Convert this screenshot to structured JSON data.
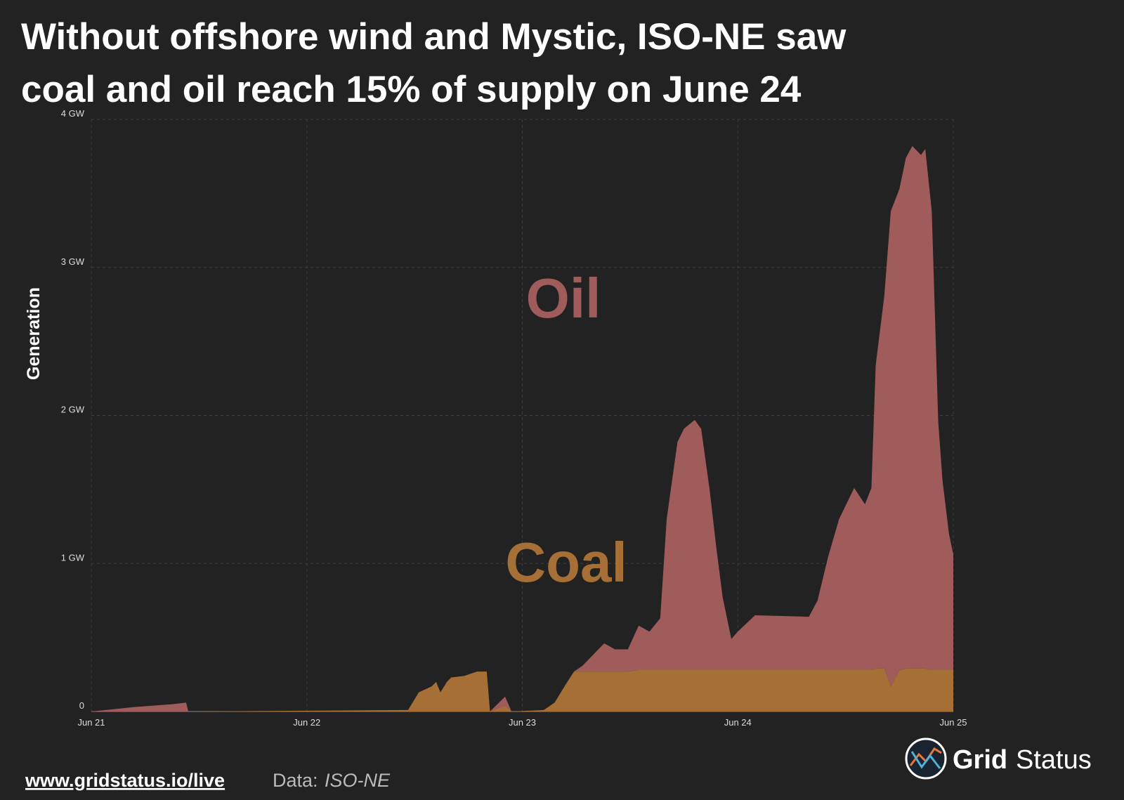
{
  "chart_data": {
    "type": "stacked-area",
    "title": [
      "Without offshore wind and Mystic, ISO-NE saw",
      "coal and oil reach 15% of supply on June 24"
    ],
    "y_label": "Generation",
    "x": [
      0,
      0.2,
      0.38,
      0.44,
      0.45,
      1.47,
      1.52,
      1.58,
      1.6,
      1.62,
      1.65,
      1.67,
      1.73,
      1.79,
      1.835,
      1.85,
      1.92,
      1.95,
      2.1,
      2.15,
      2.2,
      2.24,
      2.28,
      2.38,
      2.43,
      2.49,
      2.54,
      2.59,
      2.64,
      2.67,
      2.72,
      2.75,
      2.8,
      2.83,
      2.87,
      2.9,
      2.93,
      2.97,
      3.0,
      3.08,
      3.33,
      3.37,
      3.42,
      3.47,
      3.54,
      3.59,
      3.62,
      3.64,
      3.68,
      3.71,
      3.75,
      3.78,
      3.81,
      3.85,
      3.87,
      3.9,
      3.93,
      3.95,
      3.98,
      4.0
    ],
    "series": [
      {
        "name": "Coal",
        "color": "#a66f35",
        "values": [
          0,
          0,
          0,
          0,
          0,
          0.01,
          0.13,
          0.17,
          0.2,
          0.13,
          0.2,
          0.23,
          0.24,
          0.27,
          0.27,
          0,
          0.04,
          0,
          0.01,
          0.06,
          0.18,
          0.27,
          0.27,
          0.27,
          0.27,
          0.27,
          0.28,
          0.28,
          0.28,
          0.28,
          0.28,
          0.28,
          0.28,
          0.28,
          0.28,
          0.28,
          0.28,
          0.28,
          0.28,
          0.28,
          0.28,
          0.28,
          0.28,
          0.28,
          0.28,
          0.28,
          0.28,
          0.29,
          0.29,
          0.17,
          0.28,
          0.29,
          0.29,
          0.29,
          0.29,
          0.28,
          0.28,
          0.28,
          0.28,
          0.28
        ]
      },
      {
        "name": "Oil",
        "color": "#a05c5a",
        "values": [
          0,
          0.03,
          0.05,
          0.06,
          0,
          0,
          0,
          0,
          0,
          0,
          0,
          0,
          0,
          0,
          0,
          0,
          0.06,
          0,
          0,
          0,
          0,
          0,
          0.04,
          0.19,
          0.15,
          0.15,
          0.3,
          0.26,
          0.35,
          1.02,
          1.54,
          1.63,
          1.69,
          1.63,
          1.21,
          0.83,
          0.49,
          0.21,
          0.26,
          0.37,
          0.36,
          0.47,
          0.77,
          1.02,
          1.23,
          1.12,
          1.23,
          2.05,
          2.52,
          3.21,
          3.25,
          3.45,
          3.53,
          3.47,
          3.51,
          3.1,
          1.68,
          1.28,
          0.92,
          0.78
        ]
      }
    ],
    "xlim": [
      0,
      4
    ],
    "xticks": [
      {
        "value": 0,
        "label": "Jun 21"
      },
      {
        "value": 1,
        "label": "Jun 22"
      },
      {
        "value": 2,
        "label": "Jun 23"
      },
      {
        "value": 3,
        "label": "Jun 24"
      },
      {
        "value": 4,
        "label": "Jun 25"
      }
    ],
    "ylim": [
      0,
      4
    ],
    "yticks": [
      0,
      {
        "value": 1,
        "label": "1 GW"
      },
      {
        "value": 2,
        "label": "2 GW"
      },
      {
        "value": 3,
        "label": "3 GW"
      },
      {
        "value": 4,
        "label": "4 GW"
      }
    ],
    "grid": true
  },
  "footer": {
    "link": "www.gridstatus.io/live",
    "source_label": "Data:",
    "source": "ISO-NE",
    "brand_bold": "Grid",
    "brand": "Status"
  }
}
